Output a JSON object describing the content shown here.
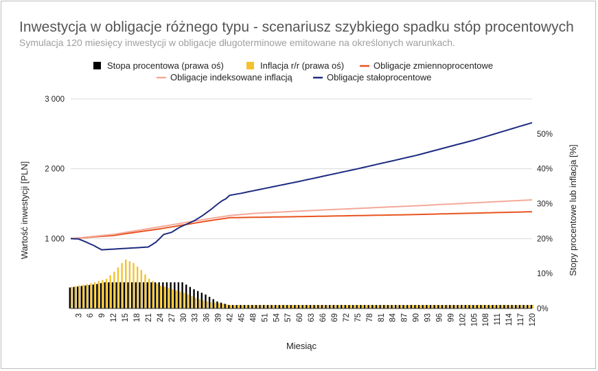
{
  "chart_data": {
    "type": "bar",
    "title": "Inwestycja w obligacje różnego typu - scenariusz szybkiego spadku stóp procentowych",
    "subtitle": "Symulacja 120 miesięcy inwestycji w obligacje długoterminowe emitowane na określonych warunkach.",
    "xlabel": "Miesiąc",
    "ylabel_left": "Wartość inwestycji [PLN]",
    "ylabel_right": "Stopy procentowe lub inflacja [%]",
    "x_range": [
      1,
      120
    ],
    "x_tick_step": 3,
    "ylim_left": [
      0,
      3000
    ],
    "yticks_left": [
      1000,
      2000,
      3000
    ],
    "ytick_labels_left": [
      "1 000",
      "2 000",
      "3 000"
    ],
    "ylim_right": [
      0,
      60
    ],
    "yticks_right": [
      0,
      10,
      20,
      30,
      40,
      50
    ],
    "ytick_labels_right": [
      "0%",
      "10%",
      "20%",
      "30%",
      "40%",
      "50%"
    ],
    "legend_position": "top",
    "grid": "horizontal",
    "series": [
      {
        "name": "Stopa procentowa (prawa oś)",
        "axis": "right",
        "kind": "bar",
        "color": "#000000",
        "points": [
          [
            1,
            6
          ],
          [
            8,
            7
          ],
          [
            10,
            7.5
          ],
          [
            30,
            7.5
          ],
          [
            33,
            5.5
          ],
          [
            36,
            4
          ],
          [
            39,
            2
          ],
          [
            42,
            1
          ],
          [
            120,
            1
          ]
        ]
      },
      {
        "name": "Inflacja r/r (prawa oś)",
        "axis": "right",
        "kind": "bar",
        "color": "#f2c12e",
        "points": [
          [
            1,
            6.2
          ],
          [
            6,
            7.2
          ],
          [
            10,
            8.5
          ],
          [
            12,
            10.5
          ],
          [
            14,
            13
          ],
          [
            15,
            14
          ],
          [
            17,
            13
          ],
          [
            19,
            11
          ],
          [
            21,
            8.5
          ],
          [
            24,
            6.5
          ],
          [
            27,
            5.5
          ],
          [
            30,
            4.5
          ],
          [
            33,
            3
          ],
          [
            36,
            2
          ],
          [
            39,
            1.5
          ],
          [
            42,
            1
          ],
          [
            120,
            1
          ]
        ]
      },
      {
        "name": "Obligacje zmiennoprocentowe",
        "axis": "left",
        "kind": "line",
        "color": "#e8531e",
        "points": [
          [
            1,
            1000
          ],
          [
            12,
            1045
          ],
          [
            24,
            1140
          ],
          [
            36,
            1250
          ],
          [
            42,
            1300
          ],
          [
            60,
            1315
          ],
          [
            90,
            1345
          ],
          [
            120,
            1385
          ]
        ]
      },
      {
        "name": "Obligacje indeksowane inflacją",
        "axis": "left",
        "kind": "line",
        "color": "#f4a898",
        "points": [
          [
            1,
            1000
          ],
          [
            12,
            1060
          ],
          [
            24,
            1170
          ],
          [
            36,
            1280
          ],
          [
            42,
            1330
          ],
          [
            48,
            1360
          ],
          [
            60,
            1395
          ],
          [
            90,
            1470
          ],
          [
            120,
            1555
          ]
        ]
      },
      {
        "name": "Obligacje stałoprocentowe",
        "axis": "left",
        "kind": "line",
        "color": "#1c2a80",
        "points": [
          [
            1,
            1000
          ],
          [
            3,
            995
          ],
          [
            5,
            950
          ],
          [
            7,
            900
          ],
          [
            9,
            840
          ],
          [
            21,
            880
          ],
          [
            23,
            950
          ],
          [
            25,
            1060
          ],
          [
            27,
            1090
          ],
          [
            29,
            1160
          ],
          [
            31,
            1210
          ],
          [
            33,
            1260
          ],
          [
            35,
            1330
          ],
          [
            37,
            1410
          ],
          [
            39,
            1500
          ],
          [
            40,
            1540
          ],
          [
            41,
            1570
          ],
          [
            42,
            1620
          ],
          [
            45,
            1650
          ],
          [
            60,
            1820
          ],
          [
            75,
            2000
          ],
          [
            90,
            2190
          ],
          [
            105,
            2410
          ],
          [
            120,
            2660
          ]
        ]
      }
    ]
  }
}
